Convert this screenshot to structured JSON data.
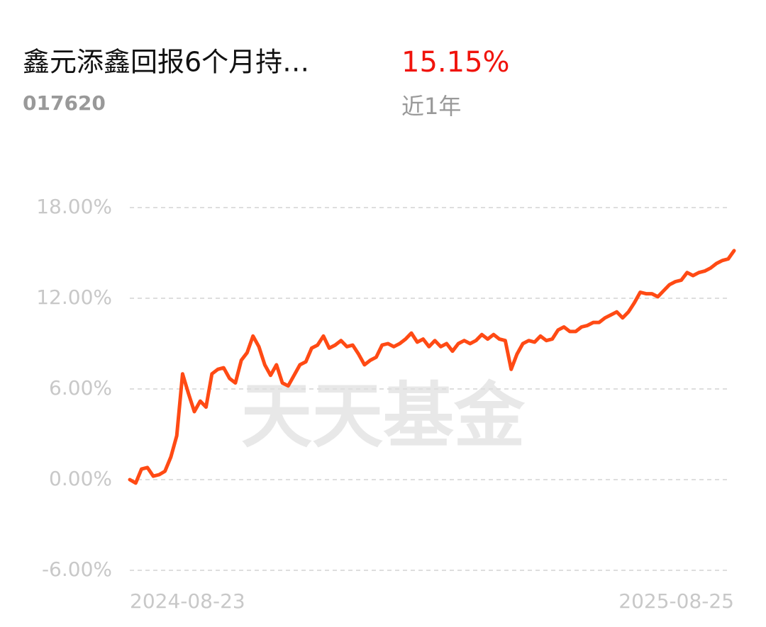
{
  "chart_data": {
    "type": "line",
    "title": "鑫元添鑫回报6个月持…",
    "subtitle": "017620",
    "annotations": [
      "15.15%",
      "近1年",
      "天天基金"
    ],
    "color": "#ff4a14",
    "grid": true,
    "ylim": [
      -6,
      18
    ],
    "yticks": [
      {
        "value": -6,
        "label": "-6.00%"
      },
      {
        "value": 0,
        "label": "0.00%"
      },
      {
        "value": 6,
        "label": "6.00%"
      },
      {
        "value": 12,
        "label": "12.00%"
      },
      {
        "value": 18,
        "label": "18.00%"
      }
    ],
    "categories": [
      "2024-08-23",
      null,
      null,
      null,
      null,
      null,
      null,
      null,
      null,
      null,
      null,
      null,
      null,
      null,
      null,
      null,
      null,
      null,
      null,
      null,
      null,
      null,
      null,
      null,
      null,
      null,
      null,
      null,
      null,
      null,
      null,
      null,
      null,
      null,
      null,
      null,
      null,
      null,
      null,
      null,
      null,
      null,
      null,
      null,
      null,
      null,
      null,
      null,
      null,
      null,
      null,
      null,
      null,
      null,
      null,
      null,
      null,
      null,
      null,
      null,
      null,
      null,
      null,
      null,
      null,
      null,
      null,
      null,
      null,
      null,
      null,
      null,
      null,
      null,
      null,
      null,
      null,
      null,
      null,
      null,
      null,
      null,
      null,
      null,
      null,
      null,
      null,
      null,
      null,
      null,
      null,
      null,
      null,
      null,
      null,
      null,
      null,
      null,
      null,
      null,
      null,
      null,
      null,
      "2025-08-25"
    ],
    "values": [
      0,
      -0.23,
      0.7,
      0.8,
      0.23,
      0.33,
      0.56,
      1.5,
      2.9,
      7.0,
      5.7,
      4.5,
      5.2,
      4.8,
      7.0,
      7.3,
      7.4,
      6.7,
      6.4,
      7.9,
      8.4,
      9.5,
      8.8,
      7.6,
      6.9,
      7.6,
      6.4,
      6.2,
      6.9,
      7.6,
      7.8,
      8.7,
      8.9,
      9.5,
      8.7,
      8.9,
      9.2,
      8.8,
      8.9,
      8.3,
      7.6,
      7.9,
      8.1,
      8.9,
      9.0,
      8.8,
      9.0,
      9.3,
      9.7,
      9.1,
      9.3,
      8.8,
      9.2,
      8.8,
      9.0,
      8.5,
      9.0,
      9.2,
      9.0,
      9.2,
      9.6,
      9.3,
      9.6,
      9.3,
      9.2,
      7.3,
      8.3,
      9.0,
      9.2,
      9.1,
      9.5,
      9.2,
      9.3,
      9.9,
      10.1,
      9.8,
      9.8,
      10.1,
      10.2,
      10.4,
      10.4,
      10.7,
      10.9,
      11.1,
      10.7,
      11.1,
      11.7,
      12.4,
      12.3,
      12.3,
      12.1,
      12.5,
      12.9,
      13.1,
      13.2,
      13.7,
      13.5,
      13.7,
      13.8,
      14.0,
      14.3,
      14.5,
      14.6,
      15.15
    ]
  }
}
